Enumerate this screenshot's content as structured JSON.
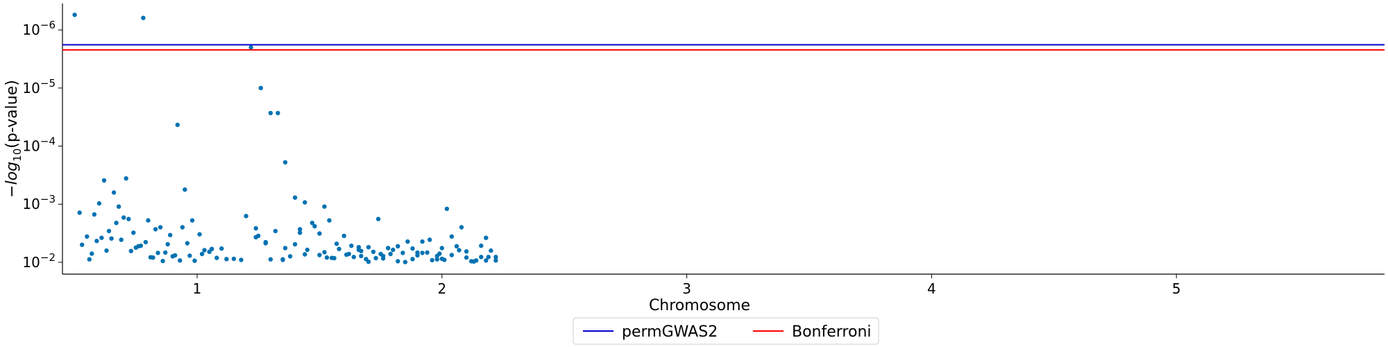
{
  "chart_data": {
    "type": "scatter",
    "xlabel": "Chromosome",
    "ylabel": "-log10(p-value)",
    "y_scale": "log",
    "ylim": [
      0.016,
      3.5e-07
    ],
    "y_ticks": [
      {
        "value": 1e-06,
        "base": "10",
        "exp": "−6"
      },
      {
        "value": 1e-05,
        "base": "10",
        "exp": "−5"
      },
      {
        "value": 0.0001,
        "base": "10",
        "exp": "−4"
      },
      {
        "value": 0.001,
        "base": "10",
        "exp": "−3"
      },
      {
        "value": 0.01,
        "base": "10",
        "exp": "−2"
      }
    ],
    "x_ticks": [
      {
        "label": "1",
        "x": 1
      },
      {
        "label": "2",
        "x": 2
      },
      {
        "label": "3",
        "x": 3
      },
      {
        "label": "4",
        "x": 4
      },
      {
        "label": "5",
        "x": 5
      }
    ],
    "xlim": [
      0.45,
      5.85
    ],
    "thresholds": [
      {
        "name": "permGWAS2",
        "value": 1.8e-06,
        "color": "#0000cc"
      },
      {
        "name": "Bonferroni",
        "value": 2.2e-06,
        "color": "#ff0000"
      }
    ],
    "legend_position": "bottom-center",
    "series": [
      {
        "chromosome": "1",
        "color": "#0072b2",
        "x": [
          0.5,
          0.78,
          0.92,
          0.55,
          0.62,
          0.71,
          0.66,
          0.74,
          0.8,
          0.6,
          0.95,
          0.72,
          0.68,
          0.58,
          0.85,
          0.88,
          0.9,
          0.53,
          0.56,
          0.63,
          0.69,
          0.75,
          0.82,
          0.87,
          0.93,
          0.97,
          1.02,
          1.05,
          1.1,
          1.15,
          1.18,
          0.57,
          0.61,
          0.64,
          0.67,
          0.7,
          0.73,
          0.76,
          0.79,
          0.81,
          0.84,
          0.86,
          0.89,
          0.91,
          0.94,
          0.96,
          0.99,
          1.01,
          1.03,
          1.06,
          1.08,
          1.12,
          0.52,
          0.59,
          0.65,
          0.77,
          0.83,
          0.98,
          1.2,
          1.24,
          1.3,
          1.35,
          1.38,
          1.42,
          1.48,
          1.52,
          1.56,
          1.6,
          1.63,
          1.67,
          1.7,
          1.74,
          1.78,
          1.82,
          1.86,
          1.9,
          1.94,
          1.98,
          2.02,
          2.06,
          2.1,
          2.14,
          2.18,
          2.22,
          1.25,
          1.32,
          1.4,
          1.45,
          1.5,
          1.55,
          1.62,
          1.66,
          1.72,
          1.76,
          1.8,
          1.84,
          1.88,
          1.92,
          1.96,
          2.0,
          2.04,
          2.08,
          2.12,
          2.16,
          2.2,
          1.28,
          1.36,
          1.44,
          1.53,
          1.58,
          1.69,
          1.99
        ],
        "y": [
          5.5e-07,
          6.2e-07,
          4.3e-05,
          0.0036,
          0.00039,
          0.00036,
          0.00063,
          0.0031,
          0.0019,
          0.00097,
          0.00056,
          0.0018,
          0.0011,
          0.0015,
          0.0025,
          0.0049,
          0.0079,
          0.005,
          0.0089,
          0.0063,
          0.0041,
          0.0056,
          0.0083,
          0.0068,
          0.0093,
          0.0077,
          0.0072,
          0.0066,
          0.0058,
          0.0087,
          0.0091,
          0.0071,
          0.0038,
          0.0029,
          0.0021,
          0.0017,
          0.0064,
          0.0053,
          0.0045,
          0.0082,
          0.0069,
          0.0095,
          0.0034,
          0.0076,
          0.0025,
          0.0047,
          0.0094,
          0.0033,
          0.0062,
          0.0059,
          0.0084,
          0.0088,
          0.0014,
          0.0043,
          0.0039,
          0.0052,
          0.0027,
          0.0019,
          0.0016,
          0.0026,
          0.0089,
          0.0091,
          0.0079,
          0.0031,
          0.0024,
          0.0067,
          0.0085,
          0.0035,
          0.0052,
          0.0078,
          0.0098,
          0.0018,
          0.0057,
          0.0096,
          0.0044,
          0.0076,
          0.0068,
          0.0089,
          0.0012,
          0.0053,
          0.0065,
          0.0093,
          0.0038,
          0.0081,
          0.0035,
          0.0029,
          0.0049,
          0.0061,
          0.0075,
          0.0084,
          0.0072,
          0.0055,
          0.0066,
          0.0078,
          0.0061,
          0.0069,
          0.0058,
          0.0044,
          0.0092,
          0.0087,
          0.0036,
          0.0025,
          0.0096,
          0.0081,
          0.0063,
          0.0047,
          0.0057,
          0.0073,
          0.0083,
          0.0059,
          0.0088,
          0.0071
        ]
      },
      {
        "chromosome": "1b",
        "color": "#0072b2",
        "x": [
          1.22,
          1.26,
          1.3,
          1.33,
          1.36,
          1.4,
          1.44,
          1.47,
          1.5,
          1.54,
          1.57,
          1.61,
          1.64,
          1.67,
          1.7,
          1.73,
          1.76,
          1.79,
          1.82,
          1.85,
          1.88,
          1.92,
          1.95,
          1.98,
          2.01,
          2.04,
          2.07,
          2.1,
          2.13,
          2.16,
          2.19,
          2.22,
          1.24,
          1.28,
          1.35,
          1.42,
          1.52,
          1.66,
          1.75,
          1.9,
          2.0,
          2.18
        ],
        "y": [
          2e-06,
          1e-05,
          2.7e-05,
          2.7e-05,
          0.00019,
          0.00077,
          0.00093,
          0.0021,
          0.0032,
          0.0019,
          0.0048,
          0.0074,
          0.0081,
          0.0064,
          0.0055,
          0.0085,
          0.0086,
          0.0072,
          0.0053,
          0.0099,
          0.0088,
          0.0069,
          0.0041,
          0.0078,
          0.0091,
          0.0075,
          0.0062,
          0.0083,
          0.0097,
          0.0052,
          0.0081,
          0.0093,
          0.0037,
          0.0045,
          0.0089,
          0.0027,
          0.0011,
          0.0061,
          0.0072,
          0.0068,
          0.0057,
          0.0093
        ]
      }
    ]
  },
  "legend": {
    "items": [
      {
        "label": "permGWAS2",
        "color": "#0000cc"
      },
      {
        "label": "Bonferroni",
        "color": "#ff0000"
      }
    ]
  }
}
